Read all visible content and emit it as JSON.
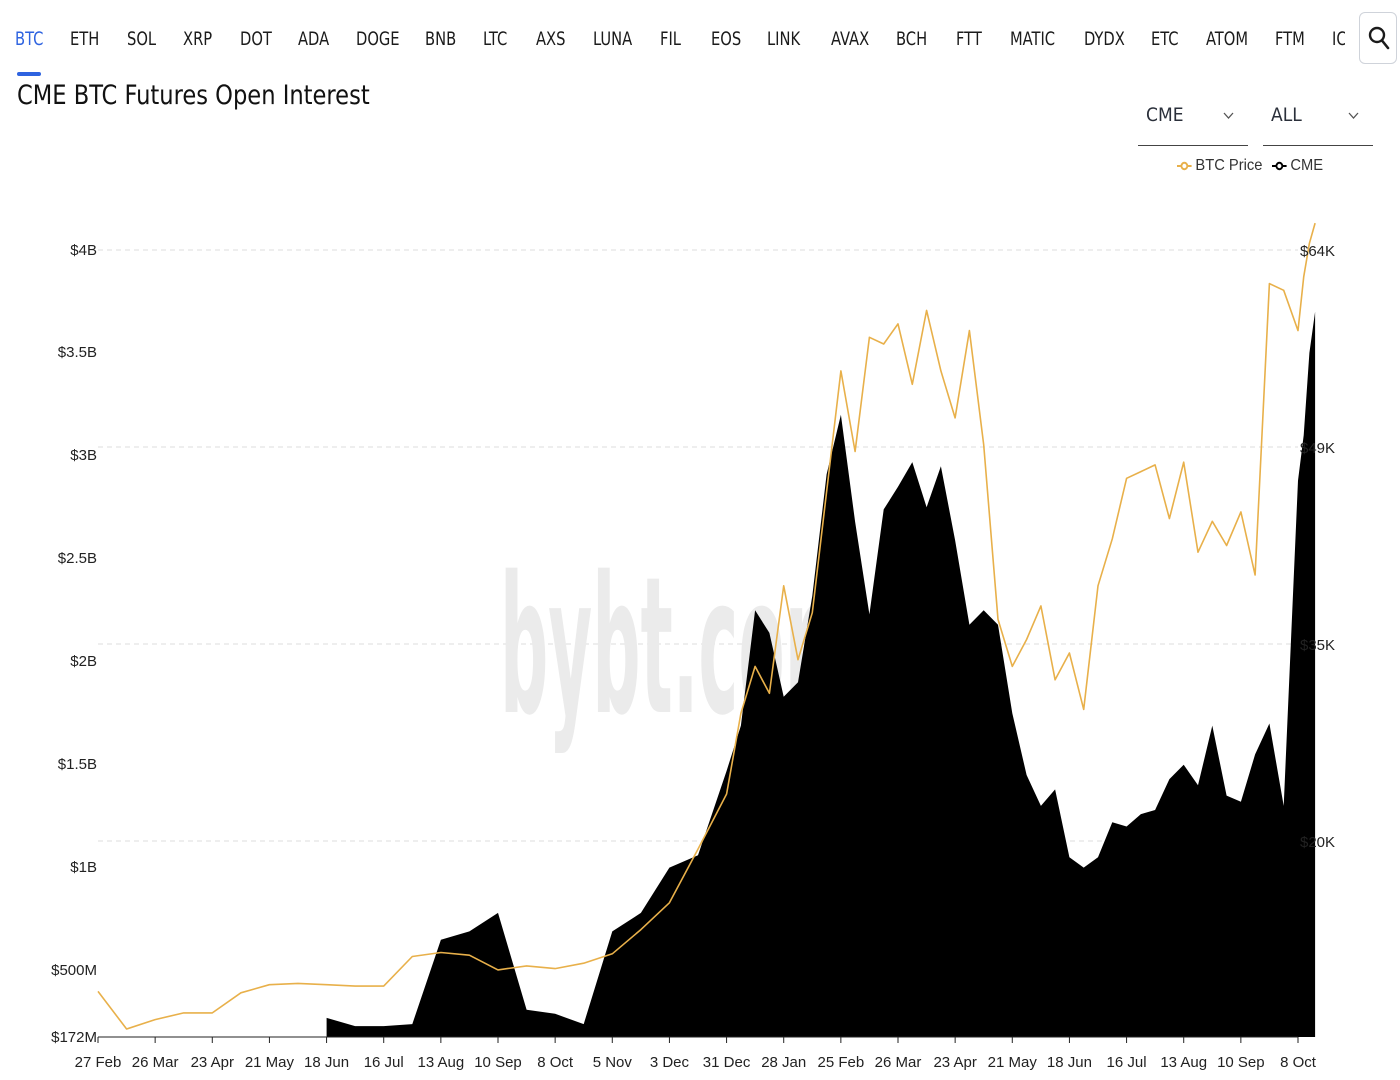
{
  "tabs": [
    "BTC",
    "ETH",
    "SOL",
    "XRP",
    "DOT",
    "ADA",
    "DOGE",
    "BNB",
    "LTC",
    "AXS",
    "LUNA",
    "FIL",
    "EOS",
    "LINK",
    "AVAX",
    "BCH",
    "FTT",
    "MATIC",
    "DYDX",
    "ETC",
    "ATOM",
    "FTM",
    "IC"
  ],
  "active_tab": "BTC",
  "page_title": "CME BTC Futures Open Interest",
  "selects": {
    "exchange": "CME",
    "range": "ALL"
  },
  "search_icon": "search-icon",
  "watermark": "bybt.com",
  "colors": {
    "accent": "#2e63e0",
    "btc_price": "#e8b04a",
    "cme_area": "#000000",
    "grid": "#dcdcdc"
  },
  "chart_data": {
    "type": "area",
    "title": "CME BTC Futures Open Interest",
    "legend": [
      "BTC Price",
      "CME"
    ],
    "legend_position": "top-right",
    "grid": true,
    "x_ticks": [
      "27 Feb",
      "26 Mar",
      "23 Apr",
      "21 May",
      "18 Jun",
      "16 Jul",
      "13 Aug",
      "10 Sep",
      "8 Oct",
      "5 Nov",
      "3 Dec",
      "31 Dec",
      "28 Jan",
      "25 Feb",
      "26 Mar",
      "23 Apr",
      "21 May",
      "18 Jun",
      "16 Jul",
      "13 Aug",
      "10 Sep",
      "8 Oct"
    ],
    "y_left_ticks": [
      "$172M",
      "$500M",
      "$1B",
      "$1.5B",
      "$2B",
      "$2.5B",
      "$3B",
      "$3.5B",
      "$4B"
    ],
    "y_right_ticks": [
      "$20K",
      "$35K",
      "$49K",
      "$64K"
    ],
    "y_left_range": [
      0,
      4000000000
    ],
    "y_right_range": [
      6000,
      64000
    ],
    "series": [
      {
        "name": "BTC Price",
        "axis": "right",
        "x": [
          0,
          0.5,
          1,
          1.5,
          2,
          2.5,
          3,
          3.5,
          4,
          4.5,
          5,
          5.5,
          6,
          6.5,
          7,
          7.5,
          8,
          8.5,
          9,
          9.5,
          10,
          10.5,
          11,
          11.25,
          11.5,
          11.75,
          12,
          12.25,
          12.5,
          12.75,
          13,
          13.25,
          13.5,
          13.75,
          14,
          14.25,
          14.5,
          14.75,
          15,
          15.25,
          15.5,
          15.75,
          16,
          16.25,
          16.5,
          16.75,
          17,
          17.25,
          17.5,
          17.75,
          18,
          18.25,
          18.5,
          18.75,
          19,
          19.25,
          19.5,
          19.75,
          20,
          20.25,
          20.5,
          20.75,
          21,
          21.1,
          21.2,
          21.3
        ],
        "values": [
          8800,
          6000,
          6700,
          7200,
          7200,
          8700,
          9300,
          9400,
          9300,
          9200,
          9200,
          11400,
          11700,
          11500,
          10400,
          10700,
          10500,
          10900,
          11600,
          13400,
          15400,
          19400,
          23500,
          29500,
          33000,
          31000,
          39000,
          33500,
          37000,
          46000,
          55000,
          49000,
          57500,
          57000,
          58500,
          54000,
          59500,
          55000,
          51500,
          58000,
          49500,
          36500,
          33000,
          35000,
          37500,
          32000,
          34000,
          29800,
          39000,
          42500,
          47000,
          47500,
          48000,
          44000,
          48200,
          41500,
          43800,
          42000,
          44500,
          39800,
          61500,
          61000,
          58000,
          62000,
          64500,
          66000
        ]
      },
      {
        "name": "CME",
        "axis": "left",
        "x": [
          4,
          4.5,
          5,
          5.5,
          6,
          6.5,
          7,
          7.5,
          8,
          8.5,
          9,
          9.5,
          10,
          10.5,
          11,
          11.25,
          11.5,
          11.75,
          12,
          12.25,
          12.5,
          12.75,
          13,
          13.25,
          13.5,
          13.75,
          14,
          14.25,
          14.5,
          14.75,
          15,
          15.25,
          15.5,
          15.75,
          16,
          16.25,
          16.5,
          16.75,
          17,
          17.25,
          17.5,
          17.75,
          18,
          18.25,
          18.5,
          18.75,
          19,
          19.25,
          19.5,
          19.75,
          20,
          20.25,
          20.5,
          20.75,
          21,
          21.1,
          21.2,
          21.3
        ],
        "values": [
          270000000,
          230000000,
          230000000,
          240000000,
          650000000,
          690000000,
          780000000,
          310000000,
          290000000,
          240000000,
          690000000,
          780000000,
          1000000000,
          1060000000,
          1470000000,
          1690000000,
          2250000000,
          2140000000,
          1830000000,
          1900000000,
          2320000000,
          2910000000,
          3200000000,
          2680000000,
          2230000000,
          2740000000,
          2850000000,
          2970000000,
          2750000000,
          2950000000,
          2590000000,
          2180000000,
          2250000000,
          2180000000,
          1750000000,
          1450000000,
          1300000000,
          1380000000,
          1050000000,
          1000000000,
          1050000000,
          1220000000,
          1200000000,
          1260000000,
          1280000000,
          1430000000,
          1500000000,
          1400000000,
          1690000000,
          1350000000,
          1320000000,
          1550000000,
          1700000000,
          1300000000,
          2880000000,
          3100000000,
          3500000000,
          3700000000
        ]
      }
    ]
  }
}
